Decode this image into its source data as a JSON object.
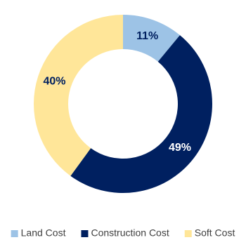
{
  "chart_data": {
    "type": "pie",
    "categories": [
      "Land Cost",
      "Construction Cost",
      "Soft Cost"
    ],
    "values": [
      11,
      49,
      40
    ],
    "value_labels": [
      "11%",
      "49%",
      "40%"
    ],
    "colors": [
      "#9dc3e6",
      "#002060",
      "#ffe699"
    ],
    "donut": true,
    "legend": "bottom"
  }
}
